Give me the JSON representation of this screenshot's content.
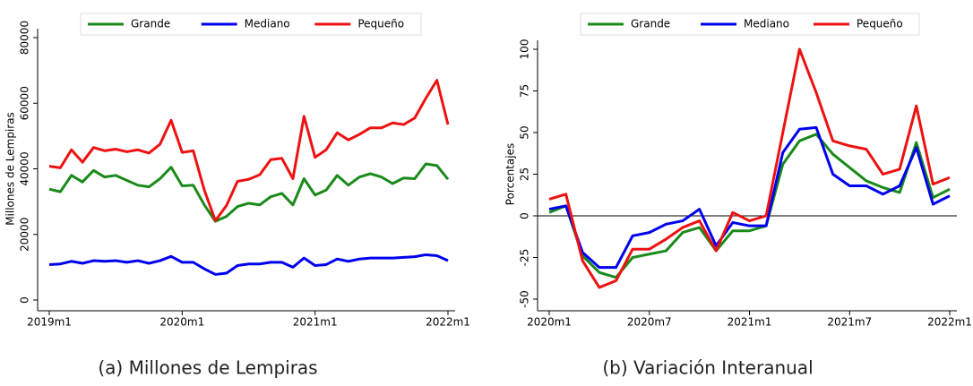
{
  "chart_data": [
    {
      "type": "line",
      "ylabel": "Millones de Lempiras",
      "caption": "(a) Millones de Lempiras",
      "categories": [
        "2019m1",
        null,
        null,
        null,
        null,
        null,
        null,
        null,
        null,
        null,
        null,
        null,
        "2020m1",
        null,
        null,
        null,
        null,
        null,
        null,
        null,
        null,
        null,
        null,
        null,
        "2021m1",
        null,
        null,
        null,
        null,
        null,
        null,
        null,
        null,
        null,
        null,
        null,
        "2022m1"
      ],
      "ylim": [
        0,
        80000
      ],
      "yticks": [
        0,
        20000,
        40000,
        60000,
        80000
      ],
      "series": [
        {
          "name": "Grande",
          "color": "#1a8a1a",
          "values": [
            33800,
            33000,
            38000,
            36000,
            39500,
            37500,
            38000,
            36500,
            35000,
            34500,
            37000,
            40500,
            34800,
            35000,
            29000,
            24000,
            25500,
            28500,
            29500,
            29000,
            31500,
            32500,
            29000,
            37000,
            32000,
            33500,
            38000,
            35000,
            37500,
            38500,
            37500,
            35500,
            37200,
            37000,
            41500,
            41000,
            36800
          ]
        },
        {
          "name": "Mediano",
          "color": "#0000ee",
          "values": [
            10800,
            11000,
            11800,
            11200,
            12000,
            11800,
            12000,
            11500,
            12000,
            11200,
            12000,
            13300,
            11500,
            11500,
            9500,
            7800,
            8200,
            10500,
            11000,
            11000,
            11500,
            11500,
            10000,
            12800,
            10500,
            10800,
            12500,
            11800,
            12500,
            12800,
            12800,
            12800,
            13000,
            13200,
            13800,
            13500,
            12000
          ]
        },
        {
          "name": "Pequeño",
          "color": "#ee1111",
          "values": [
            40800,
            40300,
            45800,
            42000,
            46500,
            45500,
            46000,
            45200,
            45800,
            44800,
            47500,
            54800,
            45000,
            45500,
            33500,
            24200,
            28800,
            36200,
            36800,
            38200,
            42800,
            43200,
            37000,
            56000,
            43500,
            45800,
            51000,
            48800,
            50500,
            52500,
            52500,
            54000,
            53500,
            55500,
            61500,
            67000,
            53500
          ]
        }
      ]
    },
    {
      "type": "line",
      "ylabel": "Porcentajes",
      "caption": "(b) Variación Interanual",
      "categories": [
        "2020m1",
        null,
        null,
        null,
        null,
        null,
        "2020m7",
        null,
        null,
        null,
        null,
        null,
        "2021m1",
        null,
        null,
        null,
        null,
        null,
        "2021m7",
        null,
        null,
        null,
        null,
        null,
        "2022m1"
      ],
      "ylim": [
        -50,
        100
      ],
      "yticks": [
        -50,
        -25,
        0,
        25,
        50,
        75,
        100
      ],
      "reference_line": 0,
      "series": [
        {
          "name": "Grande",
          "color": "#1a8a1a",
          "values": [
            2,
            6,
            -24,
            -34,
            -37,
            -25,
            -23,
            -21,
            -10,
            -7,
            -21,
            -9,
            -9,
            -6,
            31,
            45,
            49,
            37,
            29,
            21,
            17,
            14,
            44,
            11,
            16
          ]
        },
        {
          "name": "Mediano",
          "color": "#0000ee",
          "values": [
            4,
            6,
            -22,
            -31,
            -31,
            -12,
            -10,
            -5,
            -3,
            4,
            -18,
            -4,
            -6,
            -6,
            38,
            52,
            53,
            25,
            18,
            18,
            13,
            18,
            41,
            7,
            12
          ]
        },
        {
          "name": "Pequeño",
          "color": "#ee1111",
          "values": [
            10,
            13,
            -27,
            -43,
            -39,
            -20,
            -20,
            -14,
            -7,
            -3,
            -21,
            2,
            -3,
            0,
            50,
            100,
            74,
            45,
            42,
            40,
            25,
            28,
            66,
            19,
            23
          ]
        }
      ]
    }
  ]
}
